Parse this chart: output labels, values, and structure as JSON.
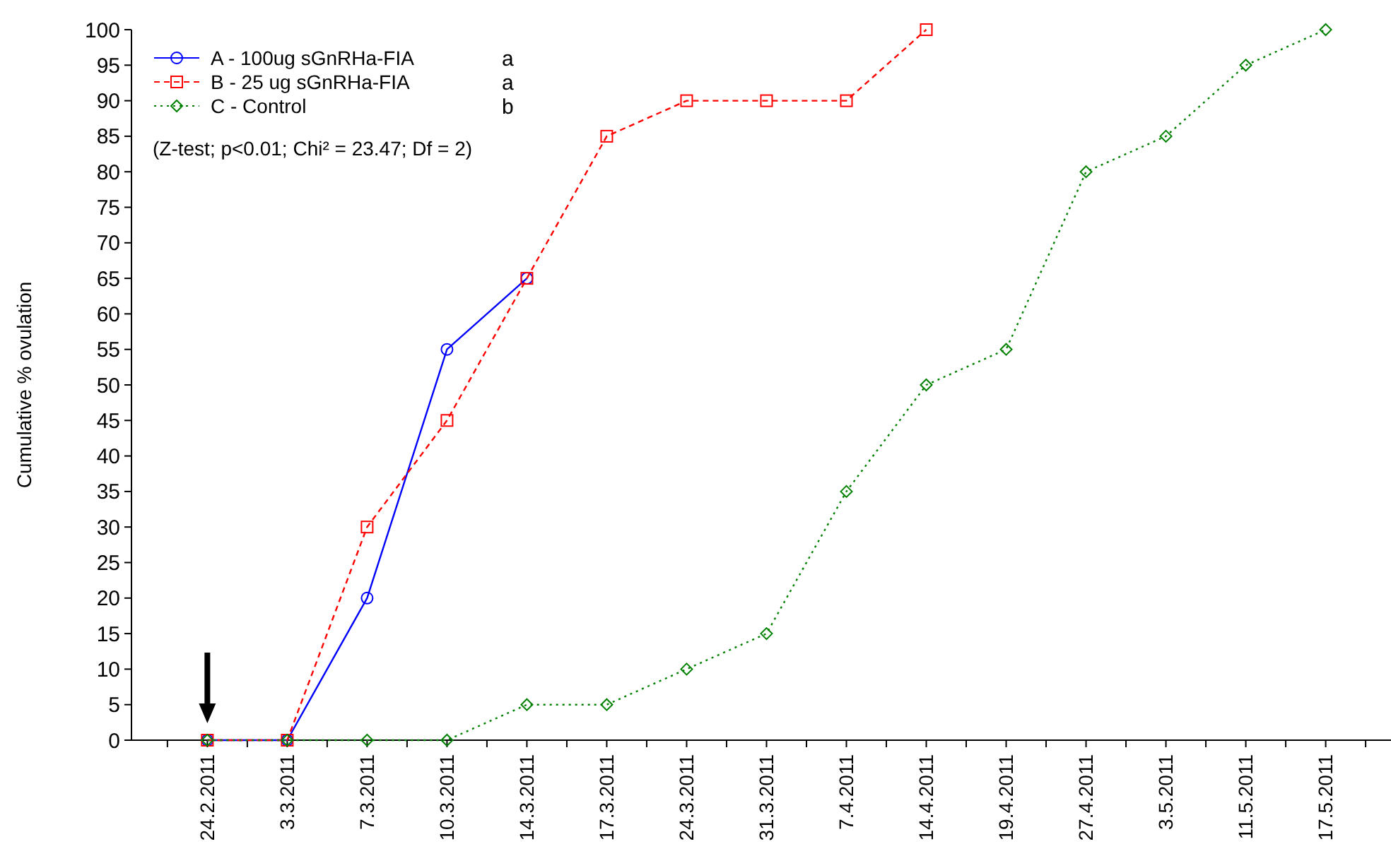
{
  "chart_data": {
    "type": "line",
    "ylabel": "Cumulative % ovulation",
    "categories": [
      "24.2.2011",
      "3.3.2011",
      "7.3.2011",
      "10.3.2011",
      "14.3.2011",
      "17.3.2011",
      "24.3.2011",
      "31.3.2011",
      "7.4.2011",
      "14.4.2011",
      "19.4.2011",
      "27.4.2011",
      "3.5.2011",
      "11.5.2011",
      "17.5.2011"
    ],
    "series": [
      {
        "name": "A - 100ug sGnRHa-FIA",
        "color": "#0000ff",
        "marker": "circle",
        "line_style": "solid",
        "values": [
          0,
          0,
          20,
          55,
          65,
          null,
          null,
          null,
          null,
          null,
          null,
          null,
          null,
          null,
          null
        ]
      },
      {
        "name": "B - 25 ug sGnRHa-FIA",
        "color": "#ff0000",
        "marker": "square",
        "line_style": "dashed",
        "values": [
          0,
          0,
          30,
          45,
          65,
          85,
          90,
          90,
          90,
          100,
          null,
          null,
          null,
          null,
          null
        ]
      },
      {
        "name": "C - Control",
        "color": "#008000",
        "marker": "diamond",
        "line_style": "dotted",
        "values": [
          0,
          0,
          0,
          0,
          5,
          5,
          10,
          15,
          35,
          50,
          55,
          80,
          85,
          95,
          100
        ]
      }
    ],
    "ylim": [
      0,
      100
    ],
    "yticks": [
      0,
      5,
      10,
      15,
      20,
      25,
      30,
      35,
      40,
      45,
      50,
      55,
      60,
      65,
      70,
      75,
      80,
      85,
      90,
      95,
      100
    ],
    "grid": false,
    "legend": "top left",
    "annotations": [
      "a",
      "a",
      "b",
      "(Z-test; p<0.01; Chi² = 23.47; Df = 2)"
    ]
  }
}
